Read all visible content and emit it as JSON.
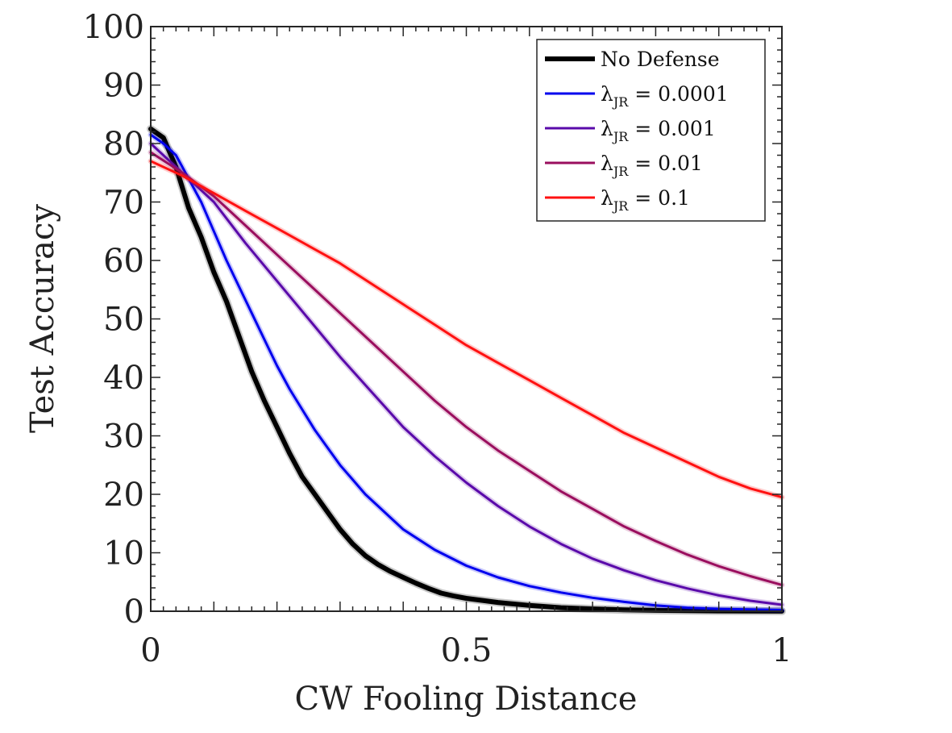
{
  "chart_data": {
    "type": "line",
    "xlabel": "CW Fooling Distance",
    "ylabel": "Test Accuracy",
    "xlim": [
      0,
      1
    ],
    "ylim": [
      0,
      100
    ],
    "xticks": [
      0,
      0.5,
      1
    ],
    "xtick_labels": [
      "0",
      "0.5",
      "1"
    ],
    "yticks": [
      0,
      10,
      20,
      30,
      40,
      50,
      60,
      70,
      80,
      90,
      100
    ],
    "ytick_labels": [
      "0",
      "10",
      "20",
      "30",
      "40",
      "50",
      "60",
      "70",
      "80",
      "90",
      "100"
    ],
    "grid": false,
    "legend_position": "top-right",
    "series": [
      {
        "name": "No Defense",
        "label_main": "No Defense",
        "label_sub": "",
        "label_rest": "",
        "color": "#000000",
        "x": [
          0,
          0.02,
          0.04,
          0.06,
          0.08,
          0.1,
          0.12,
          0.14,
          0.16,
          0.18,
          0.2,
          0.22,
          0.24,
          0.26,
          0.28,
          0.3,
          0.32,
          0.34,
          0.36,
          0.38,
          0.4,
          0.42,
          0.44,
          0.46,
          0.48,
          0.5,
          0.55,
          0.6,
          0.65,
          0.7,
          0.75,
          0.8,
          0.85,
          0.9,
          0.95,
          1.0
        ],
        "y": [
          82.5,
          81,
          76,
          69,
          64,
          58,
          53,
          47,
          41,
          36,
          31.5,
          27,
          23,
          20,
          17,
          14,
          11.5,
          9.5,
          8,
          6.8,
          5.8,
          4.8,
          3.9,
          3.1,
          2.6,
          2.2,
          1.5,
          1.0,
          0.6,
          0.4,
          0.25,
          0.15,
          0.1,
          0.05,
          0.03,
          0.02
        ]
      },
      {
        "name": "λJR = 0.0001",
        "label_main": "λ",
        "label_sub": "JR",
        "label_rest": " = 0.0001",
        "color": "#0000ee",
        "x": [
          0,
          0.02,
          0.04,
          0.06,
          0.08,
          0.1,
          0.12,
          0.14,
          0.16,
          0.18,
          0.2,
          0.22,
          0.24,
          0.26,
          0.28,
          0.3,
          0.32,
          0.34,
          0.36,
          0.38,
          0.4,
          0.45,
          0.5,
          0.55,
          0.6,
          0.65,
          0.7,
          0.75,
          0.8,
          0.85,
          0.9,
          0.95,
          1.0
        ],
        "y": [
          81.5,
          80,
          78,
          74,
          70,
          65,
          60,
          55.5,
          51,
          46.5,
          42,
          38,
          34.5,
          31,
          28,
          25,
          22.5,
          20,
          18,
          16,
          14,
          10.5,
          7.8,
          5.8,
          4.3,
          3.2,
          2.3,
          1.6,
          1.0,
          0.6,
          0.4,
          0.3,
          0.2
        ]
      },
      {
        "name": "λJR = 0.001",
        "label_main": "λ",
        "label_sub": "JR",
        "label_rest": " = 0.001",
        "color": "#5a0aaa",
        "x": [
          0,
          0.05,
          0.1,
          0.15,
          0.2,
          0.25,
          0.3,
          0.35,
          0.4,
          0.45,
          0.5,
          0.55,
          0.6,
          0.65,
          0.7,
          0.75,
          0.8,
          0.85,
          0.9,
          0.95,
          1.0
        ],
        "y": [
          80,
          75,
          70,
          63,
          56.5,
          50,
          43.5,
          37.5,
          31.5,
          26.5,
          22,
          18,
          14.5,
          11.5,
          9,
          7,
          5.3,
          3.9,
          2.7,
          1.8,
          1.1
        ]
      },
      {
        "name": "λJR = 0.01",
        "label_main": "λ",
        "label_sub": "JR",
        "label_rest": " = 0.01",
        "color": "#9a0e5e",
        "x": [
          0,
          0.05,
          0.1,
          0.15,
          0.2,
          0.25,
          0.3,
          0.35,
          0.4,
          0.45,
          0.5,
          0.55,
          0.6,
          0.65,
          0.7,
          0.75,
          0.8,
          0.85,
          0.9,
          0.95,
          1.0
        ],
        "y": [
          78.5,
          75,
          71,
          66,
          61,
          56,
          51,
          46,
          41,
          36,
          31.5,
          27.5,
          24,
          20.5,
          17.5,
          14.5,
          12,
          9.7,
          7.7,
          6,
          4.5
        ]
      },
      {
        "name": "λJR = 0.1",
        "label_main": "λ",
        "label_sub": "JR",
        "label_rest": " = 0.1",
        "color": "#ff1111",
        "x": [
          0,
          0.05,
          0.1,
          0.15,
          0.2,
          0.25,
          0.3,
          0.35,
          0.4,
          0.45,
          0.5,
          0.55,
          0.6,
          0.65,
          0.7,
          0.75,
          0.8,
          0.85,
          0.9,
          0.95,
          1.0
        ],
        "y": [
          77,
          74.5,
          71.5,
          68.5,
          65.5,
          62.5,
          59.5,
          56,
          52.5,
          49,
          45.5,
          42.5,
          39.5,
          36.5,
          33.5,
          30.5,
          28,
          25.5,
          23,
          21,
          19.5
        ]
      }
    ]
  }
}
